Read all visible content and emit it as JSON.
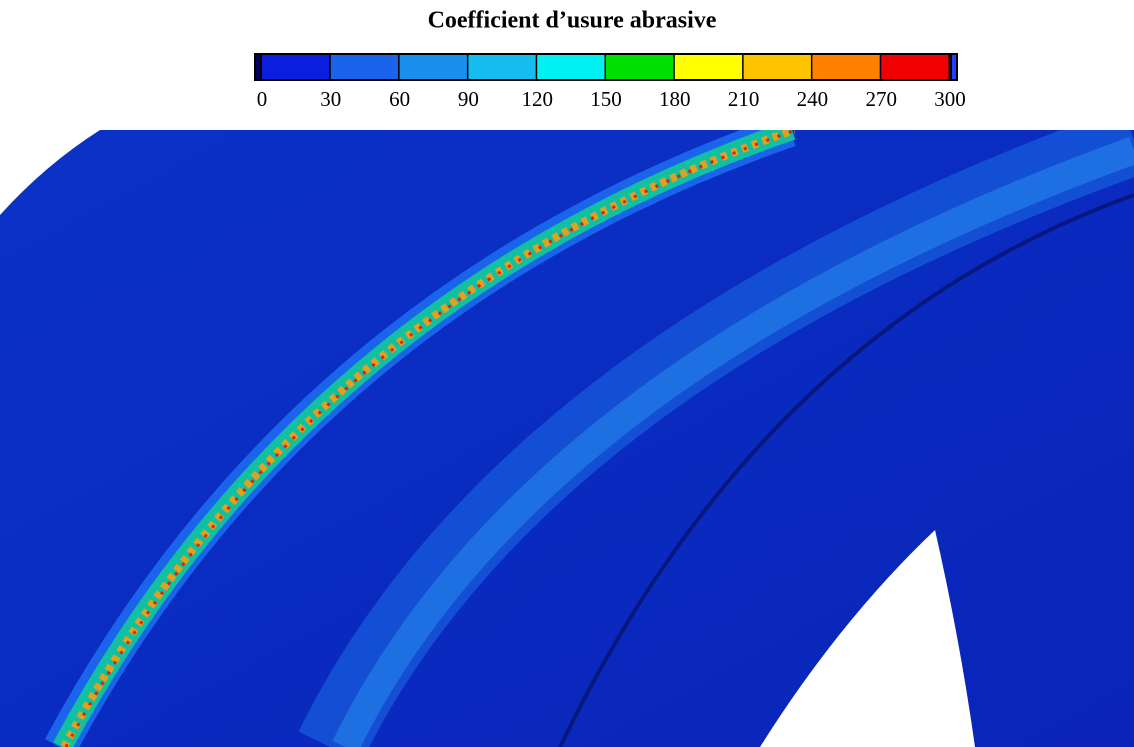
{
  "chart_data": {
    "type": "contour",
    "title": "Coefficient d’usure abrasive",
    "clim": [
      0,
      300
    ],
    "ticks": [
      0,
      30,
      60,
      90,
      120,
      150,
      180,
      210,
      240,
      270,
      300
    ],
    "colors": [
      "#0a1ee0",
      "#1a64ec",
      "#1a90ee",
      "#14bcf0",
      "#00f0f4",
      "#00e000",
      "#ffff00",
      "#ffc400",
      "#ff8000",
      "#f00000"
    ]
  }
}
